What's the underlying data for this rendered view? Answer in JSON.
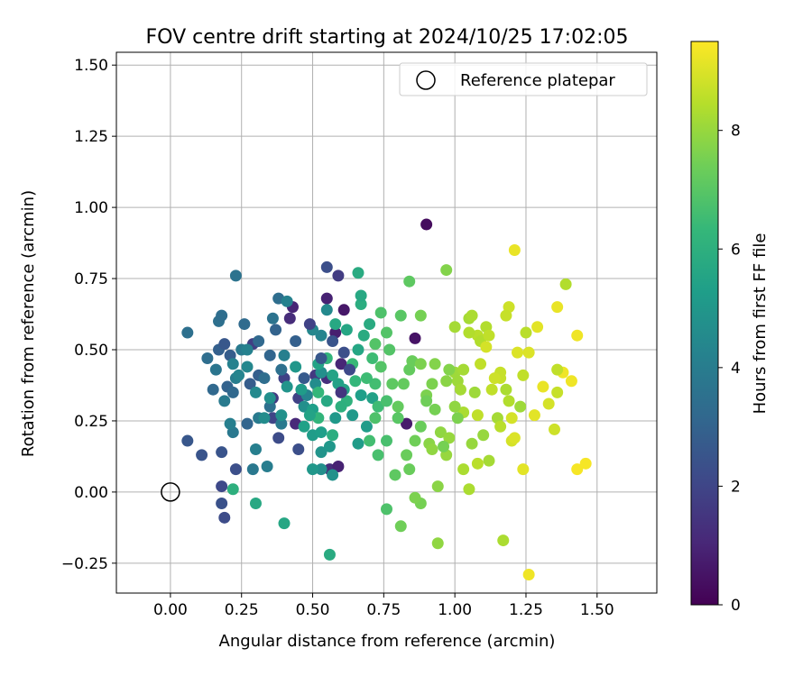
{
  "chart_data": {
    "type": "scatter",
    "title": "FOV centre drift starting at 2024/10/25 17:02:05",
    "xlabel": "Angular distance from reference (arcmin)",
    "ylabel": "Rotation from reference (arcmin)",
    "xlim": [
      -0.19,
      1.71
    ],
    "ylim": [
      -0.355,
      1.545
    ],
    "xticks": [
      0.0,
      0.25,
      0.5,
      0.75,
      1.0,
      1.25,
      1.5
    ],
    "xtick_labels": [
      "0.00",
      "0.25",
      "0.50",
      "0.75",
      "1.00",
      "1.25",
      "1.50"
    ],
    "yticks": [
      -0.25,
      0.0,
      0.25,
      0.5,
      0.75,
      1.0,
      1.25,
      1.5
    ],
    "ytick_labels": [
      "−0.25",
      "0.00",
      "0.25",
      "0.50",
      "0.75",
      "1.00",
      "1.25",
      "1.50"
    ],
    "grid": true,
    "legend": {
      "placement": "top-right",
      "entries": [
        "Reference platepar"
      ]
    },
    "reference_point": {
      "x": 0.0,
      "y": 0.0
    },
    "colorbar": {
      "label": "Hours from first FF file",
      "range": [
        0,
        9.5
      ],
      "ticks": [
        0,
        2,
        4,
        6,
        8
      ],
      "tick_labels": [
        "0",
        "2",
        "4",
        "6",
        "8"
      ],
      "colormap": "viridis",
      "stops": [
        "#440154",
        "#482878",
        "#3e4989",
        "#31688e",
        "#26828e",
        "#1f9e89",
        "#35b779",
        "#6ece58",
        "#b5de2b",
        "#fde725"
      ]
    },
    "points": [
      [
        0.9,
        0.94,
        0.3
      ],
      [
        0.58,
        0.56,
        0.8
      ],
      [
        0.61,
        0.64,
        0.6
      ],
      [
        0.55,
        0.68,
        0.9
      ],
      [
        0.43,
        0.65,
        1.0
      ],
      [
        0.44,
        0.24,
        1.1
      ],
      [
        0.86,
        0.54,
        0.5
      ],
      [
        0.83,
        0.24,
        0.7
      ],
      [
        0.56,
        0.08,
        1.2
      ],
      [
        0.59,
        0.09,
        0.9
      ],
      [
        0.55,
        0.4,
        1.3
      ],
      [
        0.6,
        0.45,
        1.0
      ],
      [
        0.36,
        0.33,
        1.6
      ],
      [
        0.29,
        0.52,
        1.8
      ],
      [
        0.42,
        0.61,
        1.2
      ],
      [
        0.4,
        0.4,
        1.9
      ],
      [
        0.45,
        0.33,
        1.9
      ],
      [
        0.51,
        0.41,
        1.6
      ],
      [
        0.36,
        0.26,
        2.0
      ],
      [
        0.38,
        0.19,
        2.2
      ],
      [
        0.45,
        0.15,
        2.3
      ],
      [
        0.23,
        0.08,
        2.3
      ],
      [
        0.18,
        0.14,
        2.5
      ],
      [
        0.18,
        0.02,
        2.1
      ],
      [
        0.18,
        -0.04,
        2.4
      ],
      [
        0.19,
        -0.09,
        2.2
      ],
      [
        0.06,
        0.18,
        2.6
      ],
      [
        0.11,
        0.13,
        2.5
      ],
      [
        0.55,
        0.79,
        2.3
      ],
      [
        0.59,
        0.76,
        1.7
      ],
      [
        0.28,
        0.38,
        2.8
      ],
      [
        0.31,
        0.41,
        2.9
      ],
      [
        0.2,
        0.37,
        3.0
      ],
      [
        0.17,
        0.5,
        2.9
      ],
      [
        0.19,
        0.52,
        2.6
      ],
      [
        0.21,
        0.48,
        2.8
      ],
      [
        0.15,
        0.36,
        3.2
      ],
      [
        0.22,
        0.35,
        3.2
      ],
      [
        0.27,
        0.24,
        3.1
      ],
      [
        0.33,
        0.4,
        3.4
      ],
      [
        0.35,
        0.3,
        3.5
      ],
      [
        0.39,
        0.43,
        3.5
      ],
      [
        0.38,
        0.68,
        3.4
      ],
      [
        0.36,
        0.61,
        3.6
      ],
      [
        0.06,
        0.56,
        3.5
      ],
      [
        0.17,
        0.6,
        3.5
      ],
      [
        0.18,
        0.62,
        3.4
      ],
      [
        0.23,
        0.76,
        3.6
      ],
      [
        0.29,
        0.08,
        3.8
      ],
      [
        0.34,
        0.09,
        4.0
      ],
      [
        0.3,
        0.15,
        4.1
      ],
      [
        0.22,
        0.21,
        3.8
      ],
      [
        0.39,
        0.24,
        3.9
      ],
      [
        0.31,
        0.26,
        3.9
      ],
      [
        0.23,
        0.4,
        4.0
      ],
      [
        0.25,
        0.5,
        3.9
      ],
      [
        0.27,
        0.5,
        4.2
      ],
      [
        0.4,
        0.48,
        4.1
      ],
      [
        0.41,
        0.67,
        4.2
      ],
      [
        0.48,
        0.34,
        4.3
      ],
      [
        0.51,
        0.38,
        4.6
      ],
      [
        0.53,
        0.42,
        4.7
      ],
      [
        0.53,
        0.55,
        4.3
      ],
      [
        0.5,
        0.57,
        4.4
      ],
      [
        0.55,
        0.64,
        4.5
      ],
      [
        0.47,
        0.3,
        4.7
      ],
      [
        0.53,
        0.08,
        4.7
      ],
      [
        0.57,
        0.06,
        4.8
      ],
      [
        0.5,
        0.08,
        5.0
      ],
      [
        0.53,
        0.14,
        4.9
      ],
      [
        0.56,
        0.16,
        5.0
      ],
      [
        0.5,
        0.2,
        5.2
      ],
      [
        0.53,
        0.21,
        5.3
      ],
      [
        0.58,
        0.26,
        5.1
      ],
      [
        0.64,
        0.27,
        5.1
      ],
      [
        0.66,
        0.17,
        5.2
      ],
      [
        0.69,
        0.23,
        5.2
      ],
      [
        0.67,
        0.34,
        5.3
      ],
      [
        0.71,
        0.33,
        5.4
      ],
      [
        0.61,
        0.36,
        5.5
      ],
      [
        0.59,
        0.38,
        5.4
      ],
      [
        0.57,
        0.41,
        5.5
      ],
      [
        0.52,
        0.45,
        5.5
      ],
      [
        0.5,
        0.29,
        5.3
      ],
      [
        0.58,
        0.59,
        5.7
      ],
      [
        0.62,
        0.57,
        5.6
      ],
      [
        0.66,
        0.5,
        5.6
      ],
      [
        0.68,
        0.55,
        5.8
      ],
      [
        0.7,
        0.59,
        5.8
      ],
      [
        0.67,
        0.66,
        5.9
      ],
      [
        0.67,
        0.69,
        5.7
      ],
      [
        0.66,
        0.77,
        5.8
      ],
      [
        0.56,
        -0.22,
        5.8
      ],
      [
        0.4,
        -0.11,
        5.6
      ],
      [
        0.3,
        -0.04,
        5.7
      ],
      [
        0.22,
        0.01,
        6.0
      ],
      [
        0.52,
        0.26,
        6.2
      ],
      [
        0.52,
        0.35,
        6.3
      ],
      [
        0.55,
        0.47,
        6.2
      ],
      [
        0.64,
        0.45,
        6.4
      ],
      [
        0.71,
        0.47,
        6.5
      ],
      [
        0.72,
        0.38,
        6.6
      ],
      [
        0.73,
        0.3,
        6.5
      ],
      [
        0.76,
        0.32,
        6.7
      ],
      [
        0.76,
        0.18,
        6.7
      ],
      [
        0.73,
        0.13,
        6.7
      ],
      [
        0.76,
        -0.06,
        6.8
      ],
      [
        0.72,
        0.52,
        6.9
      ],
      [
        0.76,
        0.56,
        6.9
      ],
      [
        0.74,
        0.63,
        6.8
      ],
      [
        0.81,
        0.62,
        7.0
      ],
      [
        0.84,
        0.74,
        7.1
      ],
      [
        0.78,
        0.38,
        7.1
      ],
      [
        0.79,
        0.06,
        7.1
      ],
      [
        0.8,
        0.3,
        7.2
      ],
      [
        0.84,
        0.43,
        7.2
      ],
      [
        0.85,
        0.46,
        7.3
      ],
      [
        0.83,
        0.13,
        7.3
      ],
      [
        0.84,
        0.08,
        7.3
      ],
      [
        0.86,
        0.18,
        7.4
      ],
      [
        0.81,
        -0.12,
        7.4
      ],
      [
        0.88,
        -0.04,
        7.5
      ],
      [
        0.86,
        -0.02,
        7.6
      ],
      [
        0.9,
        0.34,
        7.6
      ],
      [
        0.88,
        0.62,
        7.5
      ],
      [
        0.88,
        0.45,
        7.6
      ],
      [
        0.92,
        0.38,
        7.6
      ],
      [
        0.93,
        0.45,
        7.7
      ],
      [
        0.97,
        0.78,
        7.7
      ],
      [
        0.91,
        0.17,
        7.8
      ],
      [
        0.94,
        0.02,
        7.8
      ],
      [
        0.92,
        0.15,
        7.9
      ],
      [
        0.95,
        0.21,
        7.9
      ],
      [
        0.98,
        0.19,
        8.0
      ],
      [
        0.97,
        0.13,
        8.0
      ],
      [
        1.0,
        0.42,
        8.1
      ],
      [
        1.01,
        0.39,
        8.1
      ],
      [
        1.02,
        0.36,
        8.2
      ],
      [
        1.03,
        0.43,
        8.2
      ],
      [
        1.05,
        0.61,
        8.2
      ],
      [
        1.06,
        0.62,
        8.3
      ],
      [
        1.03,
        0.28,
        8.3
      ],
      [
        1.05,
        0.01,
        8.3
      ],
      [
        1.03,
        0.08,
        8.3
      ],
      [
        0.94,
        -0.18,
        7.9
      ],
      [
        1.17,
        -0.17,
        8.3
      ],
      [
        1.08,
        0.55,
        8.5
      ],
      [
        1.09,
        0.53,
        8.4
      ],
      [
        1.11,
        0.58,
        8.4
      ],
      [
        1.12,
        0.55,
        8.6
      ],
      [
        1.08,
        0.1,
        8.5
      ],
      [
        1.08,
        0.27,
        8.6
      ],
      [
        1.13,
        0.36,
        8.6
      ],
      [
        1.16,
        0.4,
        8.7
      ],
      [
        1.16,
        0.42,
        8.7
      ],
      [
        1.19,
        0.65,
        8.8
      ],
      [
        1.18,
        0.62,
        8.7
      ],
      [
        1.2,
        0.26,
        8.9
      ],
      [
        1.2,
        0.18,
        8.9
      ],
      [
        1.21,
        0.19,
        9.0
      ],
      [
        1.22,
        0.49,
        9.0
      ],
      [
        1.21,
        0.85,
        9.2
      ],
      [
        1.24,
        0.08,
        9.1
      ],
      [
        1.26,
        -0.29,
        9.3
      ],
      [
        1.28,
        0.27,
        9.1
      ],
      [
        1.36,
        0.65,
        9.2
      ],
      [
        1.38,
        0.42,
        9.3
      ],
      [
        1.43,
        0.55,
        9.3
      ],
      [
        1.43,
        0.08,
        9.4
      ],
      [
        1.46,
        0.1,
        9.4
      ],
      [
        1.41,
        0.39,
        9.3
      ],
      [
        1.36,
        0.43,
        8.6
      ],
      [
        1.39,
        0.73,
        8.4
      ],
      [
        1.36,
        0.35,
        8.7
      ],
      [
        1.35,
        0.22,
        8.8
      ],
      [
        1.25,
        0.56,
        8.5
      ],
      [
        1.18,
        0.36,
        8.3
      ],
      [
        1.15,
        0.26,
        8.2
      ],
      [
        1.23,
        0.3,
        8.1
      ],
      [
        1.06,
        0.17,
        8.0
      ],
      [
        1.0,
        0.3,
        7.9
      ],
      [
        0.97,
        0.39,
        7.8
      ],
      [
        0.98,
        0.43,
        7.7
      ],
      [
        1.01,
        0.26,
        7.6
      ],
      [
        0.96,
        0.16,
        7.5
      ],
      [
        0.93,
        0.29,
        7.5
      ],
      [
        0.9,
        0.32,
        7.4
      ],
      [
        0.88,
        0.23,
        7.3
      ],
      [
        0.82,
        0.38,
        7.2
      ],
      [
        0.8,
        0.26,
        7.0
      ],
      [
        0.77,
        0.5,
        6.9
      ],
      [
        0.74,
        0.44,
        6.9
      ],
      [
        0.72,
        0.26,
        6.8
      ],
      [
        0.7,
        0.18,
        6.6
      ],
      [
        0.69,
        0.4,
        6.5
      ],
      [
        0.65,
        0.39,
        6.3
      ],
      [
        0.62,
        0.32,
        6.1
      ],
      [
        0.6,
        0.3,
        6.0
      ],
      [
        0.57,
        0.2,
        5.9
      ],
      [
        0.55,
        0.32,
        5.7
      ],
      [
        0.49,
        0.27,
        5.5
      ],
      [
        0.47,
        0.23,
        5.4
      ],
      [
        0.46,
        0.36,
        5.2
      ],
      [
        0.44,
        0.44,
        5.0
      ],
      [
        0.41,
        0.37,
        4.9
      ],
      [
        0.39,
        0.27,
        4.8
      ],
      [
        0.35,
        0.33,
        4.7
      ],
      [
        0.33,
        0.26,
        4.6
      ],
      [
        0.3,
        0.35,
        4.5
      ],
      [
        0.27,
        0.44,
        4.4
      ],
      [
        0.24,
        0.41,
        4.3
      ],
      [
        0.22,
        0.45,
        4.2
      ],
      [
        0.21,
        0.24,
        4.1
      ],
      [
        0.19,
        0.32,
        3.9
      ],
      [
        0.16,
        0.43,
        3.7
      ],
      [
        0.13,
        0.47,
        3.4
      ],
      [
        0.26,
        0.59,
        3.3
      ],
      [
        0.31,
        0.53,
        3.2
      ],
      [
        0.35,
        0.48,
        3.1
      ],
      [
        0.37,
        0.57,
        3.0
      ],
      [
        0.44,
        0.53,
        2.9
      ],
      [
        0.47,
        0.4,
        2.7
      ],
      [
        0.53,
        0.47,
        2.6
      ],
      [
        0.57,
        0.53,
        2.5
      ],
      [
        0.61,
        0.49,
        2.3
      ],
      [
        0.63,
        0.43,
        2.1
      ],
      [
        0.49,
        0.59,
        1.9
      ],
      [
        0.6,
        0.35,
        1.5
      ],
      [
        1.11,
        0.51,
        8.9
      ],
      [
        1.14,
        0.4,
        8.8
      ],
      [
        1.09,
        0.45,
        8.6
      ],
      [
        1.05,
        0.56,
        8.4
      ],
      [
        1.0,
        0.58,
        8.2
      ],
      [
        1.07,
        0.35,
        8.1
      ],
      [
        1.1,
        0.2,
        8.0
      ],
      [
        1.12,
        0.11,
        8.2
      ],
      [
        1.16,
        0.23,
        8.5
      ],
      [
        1.19,
        0.32,
        8.4
      ],
      [
        1.24,
        0.41,
        8.6
      ],
      [
        1.26,
        0.49,
        9.0
      ],
      [
        1.29,
        0.58,
        9.1
      ],
      [
        1.31,
        0.37,
        9.2
      ],
      [
        1.33,
        0.31,
        8.9
      ]
    ]
  }
}
